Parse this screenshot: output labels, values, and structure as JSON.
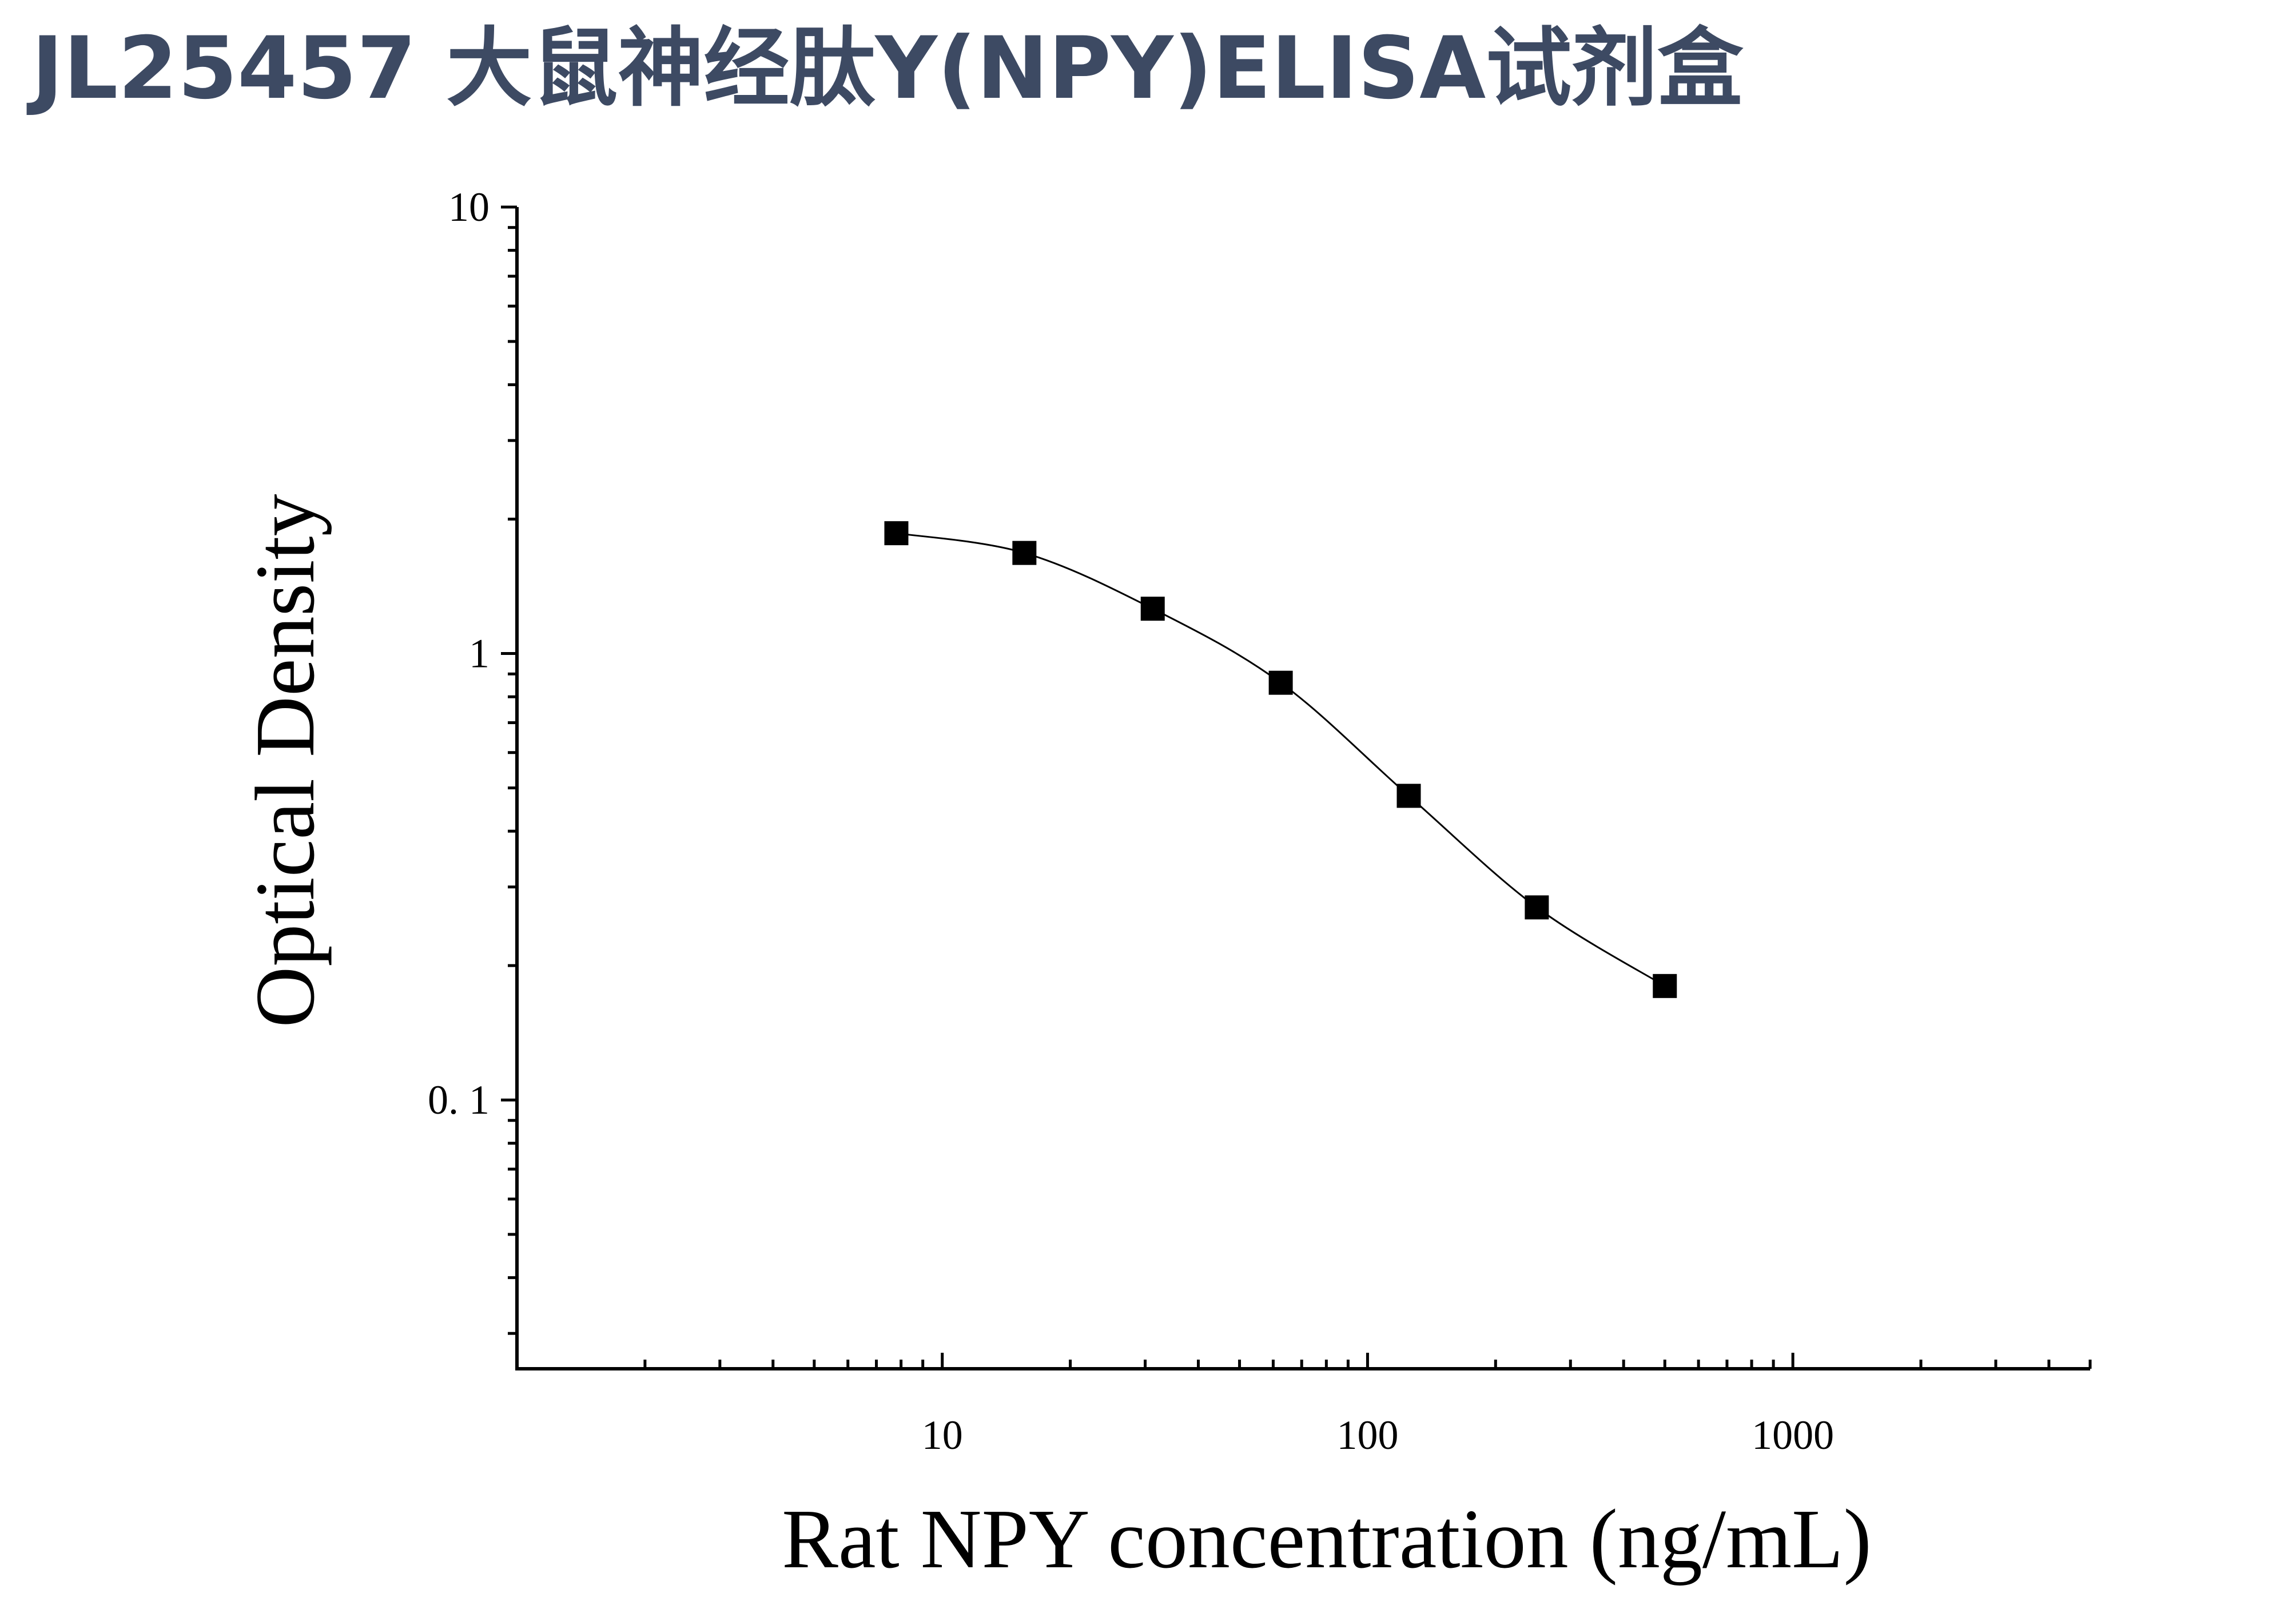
{
  "header": {
    "title": "JL25457 大鼠神经肽Y(NPY)ELISA试剂盒"
  },
  "chart_data": {
    "type": "scatter",
    "title": "JL25457 大鼠神经肽Y(NPY)ELISA试剂盒",
    "xlabel": "Rat NPY concentration (ng/mL)",
    "ylabel": "Optical Density",
    "x_scale": "log",
    "y_scale": "log",
    "xlim": [
      1,
      5000
    ],
    "ylim": [
      0.025,
      10
    ],
    "x_ticks": [
      {
        "value": 10,
        "label": "10"
      },
      {
        "value": 100,
        "label": "100"
      },
      {
        "value": 1000,
        "label": "1000"
      }
    ],
    "y_ticks": [
      {
        "value": 0.1,
        "label": "0. 1"
      },
      {
        "value": 1,
        "label": "1"
      },
      {
        "value": 10,
        "label": "10"
      }
    ],
    "grid": false,
    "legend": "none",
    "marker": "square",
    "marker_color": "#000000",
    "curve_color": "#000000",
    "fit": "four-parameter logistic",
    "points": [
      {
        "x": 7.8,
        "y": 1.86
      },
      {
        "x": 15.6,
        "y": 1.68
      },
      {
        "x": 31.25,
        "y": 1.26
      },
      {
        "x": 62.5,
        "y": 0.86
      },
      {
        "x": 125,
        "y": 0.48
      },
      {
        "x": 250,
        "y": 0.27
      },
      {
        "x": 500,
        "y": 0.18
      }
    ]
  }
}
